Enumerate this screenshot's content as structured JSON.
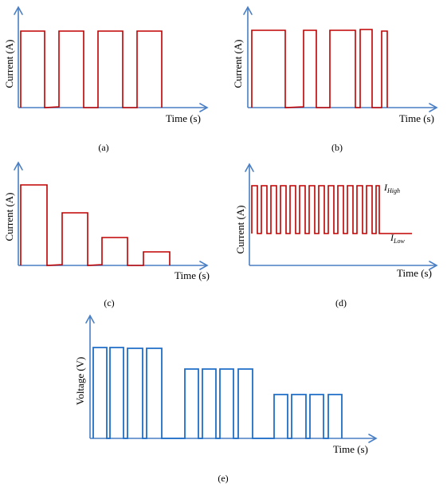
{
  "panels": {
    "a": {
      "caption": "(a)",
      "y_axis": "Current (A)",
      "x_axis": "Time (s)"
    },
    "b": {
      "caption": "(b)",
      "y_axis": "Current (A)",
      "x_axis": "Time (s)"
    },
    "c": {
      "caption": "(c)",
      "y_axis": "Current (A)",
      "x_axis": "Time (s)"
    },
    "d": {
      "caption": "(d)",
      "y_axis": "Current (A)",
      "x_axis": "Time (s)",
      "high_label_main": "I",
      "high_label_sub": "High",
      "low_label_main": "I",
      "low_label_sub": "Low"
    },
    "e": {
      "caption": "(e)",
      "y_axis": "Voltage (V)",
      "x_axis": "Time (s)"
    }
  },
  "colors": {
    "axis": "#4a7fc4",
    "current_wave": "#c00000",
    "voltage_wave": "#1f6fc8"
  }
}
